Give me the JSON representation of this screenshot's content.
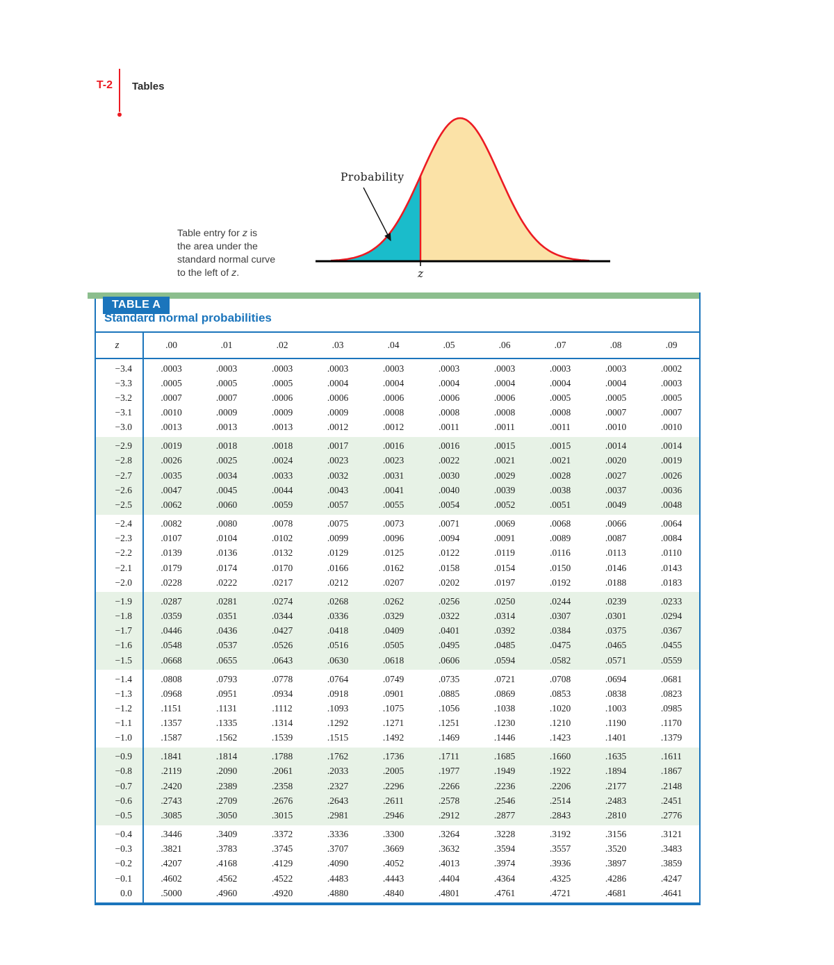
{
  "page": {
    "label": "T-2",
    "section": "Tables"
  },
  "diagram": {
    "probability_label": "Probability",
    "z_axis_label": "z",
    "caption_lines": [
      "Table entry for z is",
      "the area under the",
      "standard normal curve",
      "to the left of z."
    ],
    "colors": {
      "curve": "#ec1b23",
      "fill": "#fbe2a7",
      "shade": "#1abccb",
      "axis": "#000000"
    }
  },
  "table": {
    "badge": "TABLE A",
    "title": "Standard normal probabilities",
    "z_header": "z",
    "columns": [
      ".00",
      ".01",
      ".02",
      ".03",
      ".04",
      ".05",
      ".06",
      ".07",
      ".08",
      ".09"
    ],
    "accent_blue": "#1b75bc",
    "band_green": "#e7f2e6",
    "bar_green": "#8cbe8e",
    "rows": [
      {
        "z": "−3.4",
        "values": [
          ".0003",
          ".0003",
          ".0003",
          ".0003",
          ".0003",
          ".0003",
          ".0003",
          ".0003",
          ".0003",
          ".0002"
        ]
      },
      {
        "z": "−3.3",
        "values": [
          ".0005",
          ".0005",
          ".0005",
          ".0004",
          ".0004",
          ".0004",
          ".0004",
          ".0004",
          ".0004",
          ".0003"
        ]
      },
      {
        "z": "−3.2",
        "values": [
          ".0007",
          ".0007",
          ".0006",
          ".0006",
          ".0006",
          ".0006",
          ".0006",
          ".0005",
          ".0005",
          ".0005"
        ]
      },
      {
        "z": "−3.1",
        "values": [
          ".0010",
          ".0009",
          ".0009",
          ".0009",
          ".0008",
          ".0008",
          ".0008",
          ".0008",
          ".0007",
          ".0007"
        ]
      },
      {
        "z": "−3.0",
        "values": [
          ".0013",
          ".0013",
          ".0013",
          ".0012",
          ".0012",
          ".0011",
          ".0011",
          ".0011",
          ".0010",
          ".0010"
        ]
      },
      {
        "z": "−2.9",
        "values": [
          ".0019",
          ".0018",
          ".0018",
          ".0017",
          ".0016",
          ".0016",
          ".0015",
          ".0015",
          ".0014",
          ".0014"
        ]
      },
      {
        "z": "−2.8",
        "values": [
          ".0026",
          ".0025",
          ".0024",
          ".0023",
          ".0023",
          ".0022",
          ".0021",
          ".0021",
          ".0020",
          ".0019"
        ]
      },
      {
        "z": "−2.7",
        "values": [
          ".0035",
          ".0034",
          ".0033",
          ".0032",
          ".0031",
          ".0030",
          ".0029",
          ".0028",
          ".0027",
          ".0026"
        ]
      },
      {
        "z": "−2.6",
        "values": [
          ".0047",
          ".0045",
          ".0044",
          ".0043",
          ".0041",
          ".0040",
          ".0039",
          ".0038",
          ".0037",
          ".0036"
        ]
      },
      {
        "z": "−2.5",
        "values": [
          ".0062",
          ".0060",
          ".0059",
          ".0057",
          ".0055",
          ".0054",
          ".0052",
          ".0051",
          ".0049",
          ".0048"
        ]
      },
      {
        "z": "−2.4",
        "values": [
          ".0082",
          ".0080",
          ".0078",
          ".0075",
          ".0073",
          ".0071",
          ".0069",
          ".0068",
          ".0066",
          ".0064"
        ]
      },
      {
        "z": "−2.3",
        "values": [
          ".0107",
          ".0104",
          ".0102",
          ".0099",
          ".0096",
          ".0094",
          ".0091",
          ".0089",
          ".0087",
          ".0084"
        ]
      },
      {
        "z": "−2.2",
        "values": [
          ".0139",
          ".0136",
          ".0132",
          ".0129",
          ".0125",
          ".0122",
          ".0119",
          ".0116",
          ".0113",
          ".0110"
        ]
      },
      {
        "z": "−2.1",
        "values": [
          ".0179",
          ".0174",
          ".0170",
          ".0166",
          ".0162",
          ".0158",
          ".0154",
          ".0150",
          ".0146",
          ".0143"
        ]
      },
      {
        "z": "−2.0",
        "values": [
          ".0228",
          ".0222",
          ".0217",
          ".0212",
          ".0207",
          ".0202",
          ".0197",
          ".0192",
          ".0188",
          ".0183"
        ]
      },
      {
        "z": "−1.9",
        "values": [
          ".0287",
          ".0281",
          ".0274",
          ".0268",
          ".0262",
          ".0256",
          ".0250",
          ".0244",
          ".0239",
          ".0233"
        ]
      },
      {
        "z": "−1.8",
        "values": [
          ".0359",
          ".0351",
          ".0344",
          ".0336",
          ".0329",
          ".0322",
          ".0314",
          ".0307",
          ".0301",
          ".0294"
        ]
      },
      {
        "z": "−1.7",
        "values": [
          ".0446",
          ".0436",
          ".0427",
          ".0418",
          ".0409",
          ".0401",
          ".0392",
          ".0384",
          ".0375",
          ".0367"
        ]
      },
      {
        "z": "−1.6",
        "values": [
          ".0548",
          ".0537",
          ".0526",
          ".0516",
          ".0505",
          ".0495",
          ".0485",
          ".0475",
          ".0465",
          ".0455"
        ]
      },
      {
        "z": "−1.5",
        "values": [
          ".0668",
          ".0655",
          ".0643",
          ".0630",
          ".0618",
          ".0606",
          ".0594",
          ".0582",
          ".0571",
          ".0559"
        ]
      },
      {
        "z": "−1.4",
        "values": [
          ".0808",
          ".0793",
          ".0778",
          ".0764",
          ".0749",
          ".0735",
          ".0721",
          ".0708",
          ".0694",
          ".0681"
        ]
      },
      {
        "z": "−1.3",
        "values": [
          ".0968",
          ".0951",
          ".0934",
          ".0918",
          ".0901",
          ".0885",
          ".0869",
          ".0853",
          ".0838",
          ".0823"
        ]
      },
      {
        "z": "−1.2",
        "values": [
          ".1151",
          ".1131",
          ".1112",
          ".1093",
          ".1075",
          ".1056",
          ".1038",
          ".1020",
          ".1003",
          ".0985"
        ]
      },
      {
        "z": "−1.1",
        "values": [
          ".1357",
          ".1335",
          ".1314",
          ".1292",
          ".1271",
          ".1251",
          ".1230",
          ".1210",
          ".1190",
          ".1170"
        ]
      },
      {
        "z": "−1.0",
        "values": [
          ".1587",
          ".1562",
          ".1539",
          ".1515",
          ".1492",
          ".1469",
          ".1446",
          ".1423",
          ".1401",
          ".1379"
        ]
      },
      {
        "z": "−0.9",
        "values": [
          ".1841",
          ".1814",
          ".1788",
          ".1762",
          ".1736",
          ".1711",
          ".1685",
          ".1660",
          ".1635",
          ".1611"
        ]
      },
      {
        "z": "−0.8",
        "values": [
          ".2119",
          ".2090",
          ".2061",
          ".2033",
          ".2005",
          ".1977",
          ".1949",
          ".1922",
          ".1894",
          ".1867"
        ]
      },
      {
        "z": "−0.7",
        "values": [
          ".2420",
          ".2389",
          ".2358",
          ".2327",
          ".2296",
          ".2266",
          ".2236",
          ".2206",
          ".2177",
          ".2148"
        ]
      },
      {
        "z": "−0.6",
        "values": [
          ".2743",
          ".2709",
          ".2676",
          ".2643",
          ".2611",
          ".2578",
          ".2546",
          ".2514",
          ".2483",
          ".2451"
        ]
      },
      {
        "z": "−0.5",
        "values": [
          ".3085",
          ".3050",
          ".3015",
          ".2981",
          ".2946",
          ".2912",
          ".2877",
          ".2843",
          ".2810",
          ".2776"
        ]
      },
      {
        "z": "−0.4",
        "values": [
          ".3446",
          ".3409",
          ".3372",
          ".3336",
          ".3300",
          ".3264",
          ".3228",
          ".3192",
          ".3156",
          ".3121"
        ]
      },
      {
        "z": "−0.3",
        "values": [
          ".3821",
          ".3783",
          ".3745",
          ".3707",
          ".3669",
          ".3632",
          ".3594",
          ".3557",
          ".3520",
          ".3483"
        ]
      },
      {
        "z": "−0.2",
        "values": [
          ".4207",
          ".4168",
          ".4129",
          ".4090",
          ".4052",
          ".4013",
          ".3974",
          ".3936",
          ".3897",
          ".3859"
        ]
      },
      {
        "z": "−0.1",
        "values": [
          ".4602",
          ".4562",
          ".4522",
          ".4483",
          ".4443",
          ".4404",
          ".4364",
          ".4325",
          ".4286",
          ".4247"
        ]
      },
      {
        "z": "0.0",
        "values": [
          ".5000",
          ".4960",
          ".4920",
          ".4880",
          ".4840",
          ".4801",
          ".4761",
          ".4721",
          ".4681",
          ".4641"
        ]
      }
    ]
  }
}
